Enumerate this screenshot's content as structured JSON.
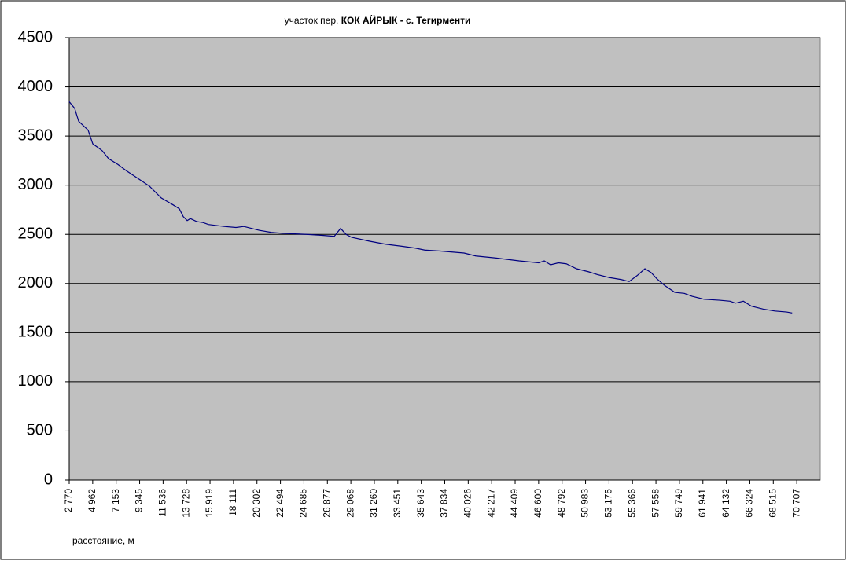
{
  "chart_data": {
    "type": "line",
    "title": {
      "normal": "участок пер.",
      "bold": "КОК  АЙРЫК - с. Тегирменти"
    },
    "x_label": "расстояние, м",
    "x": [
      2770,
      3284,
      3651,
      4533,
      4973,
      5488,
      5854,
      6442,
      7323,
      8058,
      9159,
      10261,
      11362,
      12464,
      13052,
      13419,
      13786,
      14080,
      14667,
      15255,
      15769,
      17238,
      18340,
      19074,
      20543,
      21645,
      22746,
      24949,
      26418,
      27520,
      28107,
      28621,
      29135,
      30824,
      32293,
      33762,
      35084,
      35965,
      37434,
      39637,
      40739,
      42575,
      44778,
      46614,
      47128,
      47716,
      48450,
      49184,
      50139,
      51241,
      52122,
      53223,
      54325,
      55059,
      55793,
      56528,
      57116,
      57630,
      58364,
      59319,
      60200,
      60934,
      62036,
      63505,
      64474,
      64989,
      65723,
      66457,
      67559,
      68660,
      69762,
      70276
    ],
    "values": [
      3850,
      3780,
      3650,
      3560,
      3420,
      3380,
      3350,
      3270,
      3210,
      3150,
      3070,
      2990,
      2870,
      2800,
      2760,
      2680,
      2640,
      2660,
      2630,
      2620,
      2600,
      2580,
      2570,
      2580,
      2540,
      2520,
      2510,
      2500,
      2490,
      2480,
      2560,
      2500,
      2470,
      2430,
      2400,
      2380,
      2360,
      2340,
      2330,
      2310,
      2280,
      2260,
      2230,
      2210,
      2230,
      2190,
      2210,
      2200,
      2150,
      2120,
      2090,
      2060,
      2040,
      2020,
      2080,
      2150,
      2110,
      2050,
      1980,
      1910,
      1900,
      1870,
      1840,
      1830,
      1820,
      1800,
      1820,
      1770,
      1740,
      1720,
      1710,
      1700
    ],
    "color": "#000080",
    "xlim": [
      2770,
      72900
    ],
    "xticks": [
      {
        "value": 2770,
        "label": "2 770"
      },
      {
        "value": 4962,
        "label": "4 962"
      },
      {
        "value": 7153,
        "label": "7 153"
      },
      {
        "value": 9345,
        "label": "9 345"
      },
      {
        "value": 11536,
        "label": "11 536"
      },
      {
        "value": 13728,
        "label": "13 728"
      },
      {
        "value": 15919,
        "label": "15 919"
      },
      {
        "value": 18111,
        "label": "18 111"
      },
      {
        "value": 20302,
        "label": "20 302"
      },
      {
        "value": 22494,
        "label": "22 494"
      },
      {
        "value": 24685,
        "label": "24 685"
      },
      {
        "value": 26877,
        "label": "26 877"
      },
      {
        "value": 29068,
        "label": "29 068"
      },
      {
        "value": 31260,
        "label": "31 260"
      },
      {
        "value": 33451,
        "label": "33 451"
      },
      {
        "value": 35643,
        "label": "35 643"
      },
      {
        "value": 37834,
        "label": "37 834"
      },
      {
        "value": 40026,
        "label": "40 026"
      },
      {
        "value": 42217,
        "label": "42 217"
      },
      {
        "value": 44409,
        "label": "44 409"
      },
      {
        "value": 46600,
        "label": "46 600"
      },
      {
        "value": 48792,
        "label": "48 792"
      },
      {
        "value": 50983,
        "label": "50 983"
      },
      {
        "value": 53175,
        "label": "53 175"
      },
      {
        "value": 55366,
        "label": "55 366"
      },
      {
        "value": 57558,
        "label": "57 558"
      },
      {
        "value": 59749,
        "label": "59 749"
      },
      {
        "value": 61941,
        "label": "61 941"
      },
      {
        "value": 64132,
        "label": "64 132"
      },
      {
        "value": 66324,
        "label": "66 324"
      },
      {
        "value": 68515,
        "label": "68 515"
      },
      {
        "value": 70707,
        "label": "70 707"
      }
    ],
    "ylim": [
      0,
      4500
    ],
    "yticks": [
      0,
      500,
      1000,
      1500,
      2000,
      2500,
      3000,
      3500,
      4000,
      4500
    ],
    "grid": true
  }
}
